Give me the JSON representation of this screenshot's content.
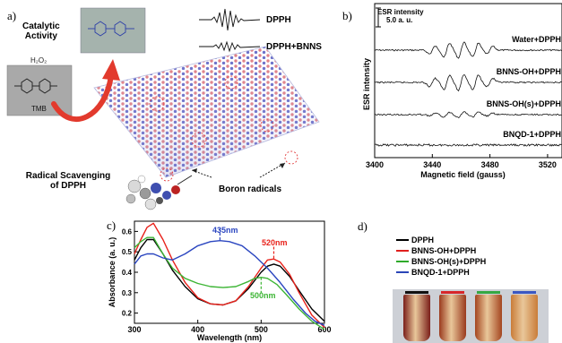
{
  "panel_a": {
    "label": "a)",
    "catalytic_line1": "Catalytic",
    "catalytic_line2": "Activity",
    "h2o2": "H₂O₂",
    "tmb": "TMB",
    "radical_line1": "Radical Scavenging",
    "radical_line2": "of DPPH",
    "boron_radicals": "Boron radicals",
    "trace_dpph": "DPPH",
    "trace_dpph_bnns": "DPPH+BNNS"
  },
  "panel_b": {
    "label": "b)",
    "scale_line1": "ESR intensity",
    "scale_line2": "5.0 a. u."
  },
  "panel_c": {
    "label": "c)",
    "peak_435": "435nm",
    "peak_520": "520nm",
    "peak_500": "500nm"
  },
  "panel_d": {
    "label": "d)",
    "legend": [
      {
        "label": "DPPH",
        "color": "#000000"
      },
      {
        "label": "BNNS-OH+DPPH",
        "color": "#e0201e"
      },
      {
        "label": "BNNS-OH(s)+DPPH",
        "color": "#2faa2a"
      },
      {
        "label": "BNQD-1+DPPH",
        "color": "#2b46b8"
      }
    ],
    "vial_cap_colors": [
      "#111111",
      "#d8262a",
      "#35a843",
      "#3b57c2"
    ],
    "vial_liquid_colors": [
      "#7a1f1a",
      "#9a3a1e",
      "#a4451f",
      "#c97c38"
    ]
  },
  "chart_data": [
    {
      "type": "line",
      "panel": "b",
      "xlabel": "Magnetic field (gauss)",
      "ylabel": "ESR intensity",
      "xlim": [
        3400,
        3530
      ],
      "xticks": [
        3400,
        3440,
        3480,
        3520
      ],
      "series": [
        {
          "name": "Water+DPPH",
          "offset": 3,
          "amplitude": 1.0
        },
        {
          "name": "BNNS-OH+DPPH",
          "offset": 2,
          "amplitude": 1.05
        },
        {
          "name": "BNNS-OH(s)+DPPH",
          "offset": 1,
          "amplitude": 0.35
        },
        {
          "name": "BNQD-1+DPPH",
          "offset": 0,
          "amplitude": 0.0
        }
      ]
    },
    {
      "type": "line",
      "panel": "c",
      "xlabel": "Wavelength (nm)",
      "ylabel": "Absorbance (a. u.)",
      "xlim": [
        300,
        600
      ],
      "ylim": [
        0.15,
        0.65
      ],
      "xticks": [
        300,
        400,
        500,
        600
      ],
      "yticks": [
        0.2,
        0.3,
        0.4,
        0.5,
        0.6
      ],
      "series": [
        {
          "color": "#000000",
          "x": [
            300,
            310,
            320,
            330,
            345,
            360,
            380,
            400,
            420,
            440,
            460,
            480,
            500,
            510,
            520,
            530,
            545,
            560,
            580,
            600
          ],
          "y": [
            0.46,
            0.52,
            0.56,
            0.56,
            0.49,
            0.41,
            0.33,
            0.27,
            0.245,
            0.24,
            0.26,
            0.32,
            0.4,
            0.43,
            0.44,
            0.43,
            0.38,
            0.31,
            0.22,
            0.16
          ]
        },
        {
          "color": "#e8221b",
          "x": [
            300,
            310,
            320,
            330,
            345,
            360,
            380,
            400,
            420,
            440,
            460,
            480,
            500,
            510,
            520,
            530,
            545,
            560,
            580,
            600
          ],
          "y": [
            0.49,
            0.56,
            0.62,
            0.64,
            0.56,
            0.46,
            0.35,
            0.275,
            0.245,
            0.24,
            0.26,
            0.33,
            0.42,
            0.46,
            0.465,
            0.45,
            0.39,
            0.3,
            0.19,
            0.13
          ]
        },
        {
          "color": "#3db535",
          "x": [
            300,
            310,
            320,
            330,
            345,
            360,
            380,
            400,
            420,
            440,
            460,
            480,
            490,
            500,
            510,
            525,
            540,
            560,
            580,
            600
          ],
          "y": [
            0.52,
            0.55,
            0.57,
            0.57,
            0.49,
            0.42,
            0.37,
            0.345,
            0.33,
            0.325,
            0.33,
            0.355,
            0.37,
            0.375,
            0.37,
            0.34,
            0.29,
            0.22,
            0.16,
            0.12
          ]
        },
        {
          "color": "#2b46c0",
          "x": [
            300,
            310,
            320,
            330,
            345,
            360,
            380,
            400,
            420,
            435,
            450,
            470,
            490,
            510,
            530,
            550,
            570,
            585,
            600
          ],
          "y": [
            0.44,
            0.48,
            0.49,
            0.49,
            0.47,
            0.46,
            0.49,
            0.53,
            0.55,
            0.555,
            0.55,
            0.53,
            0.48,
            0.42,
            0.35,
            0.27,
            0.2,
            0.16,
            0.14
          ]
        }
      ]
    }
  ]
}
